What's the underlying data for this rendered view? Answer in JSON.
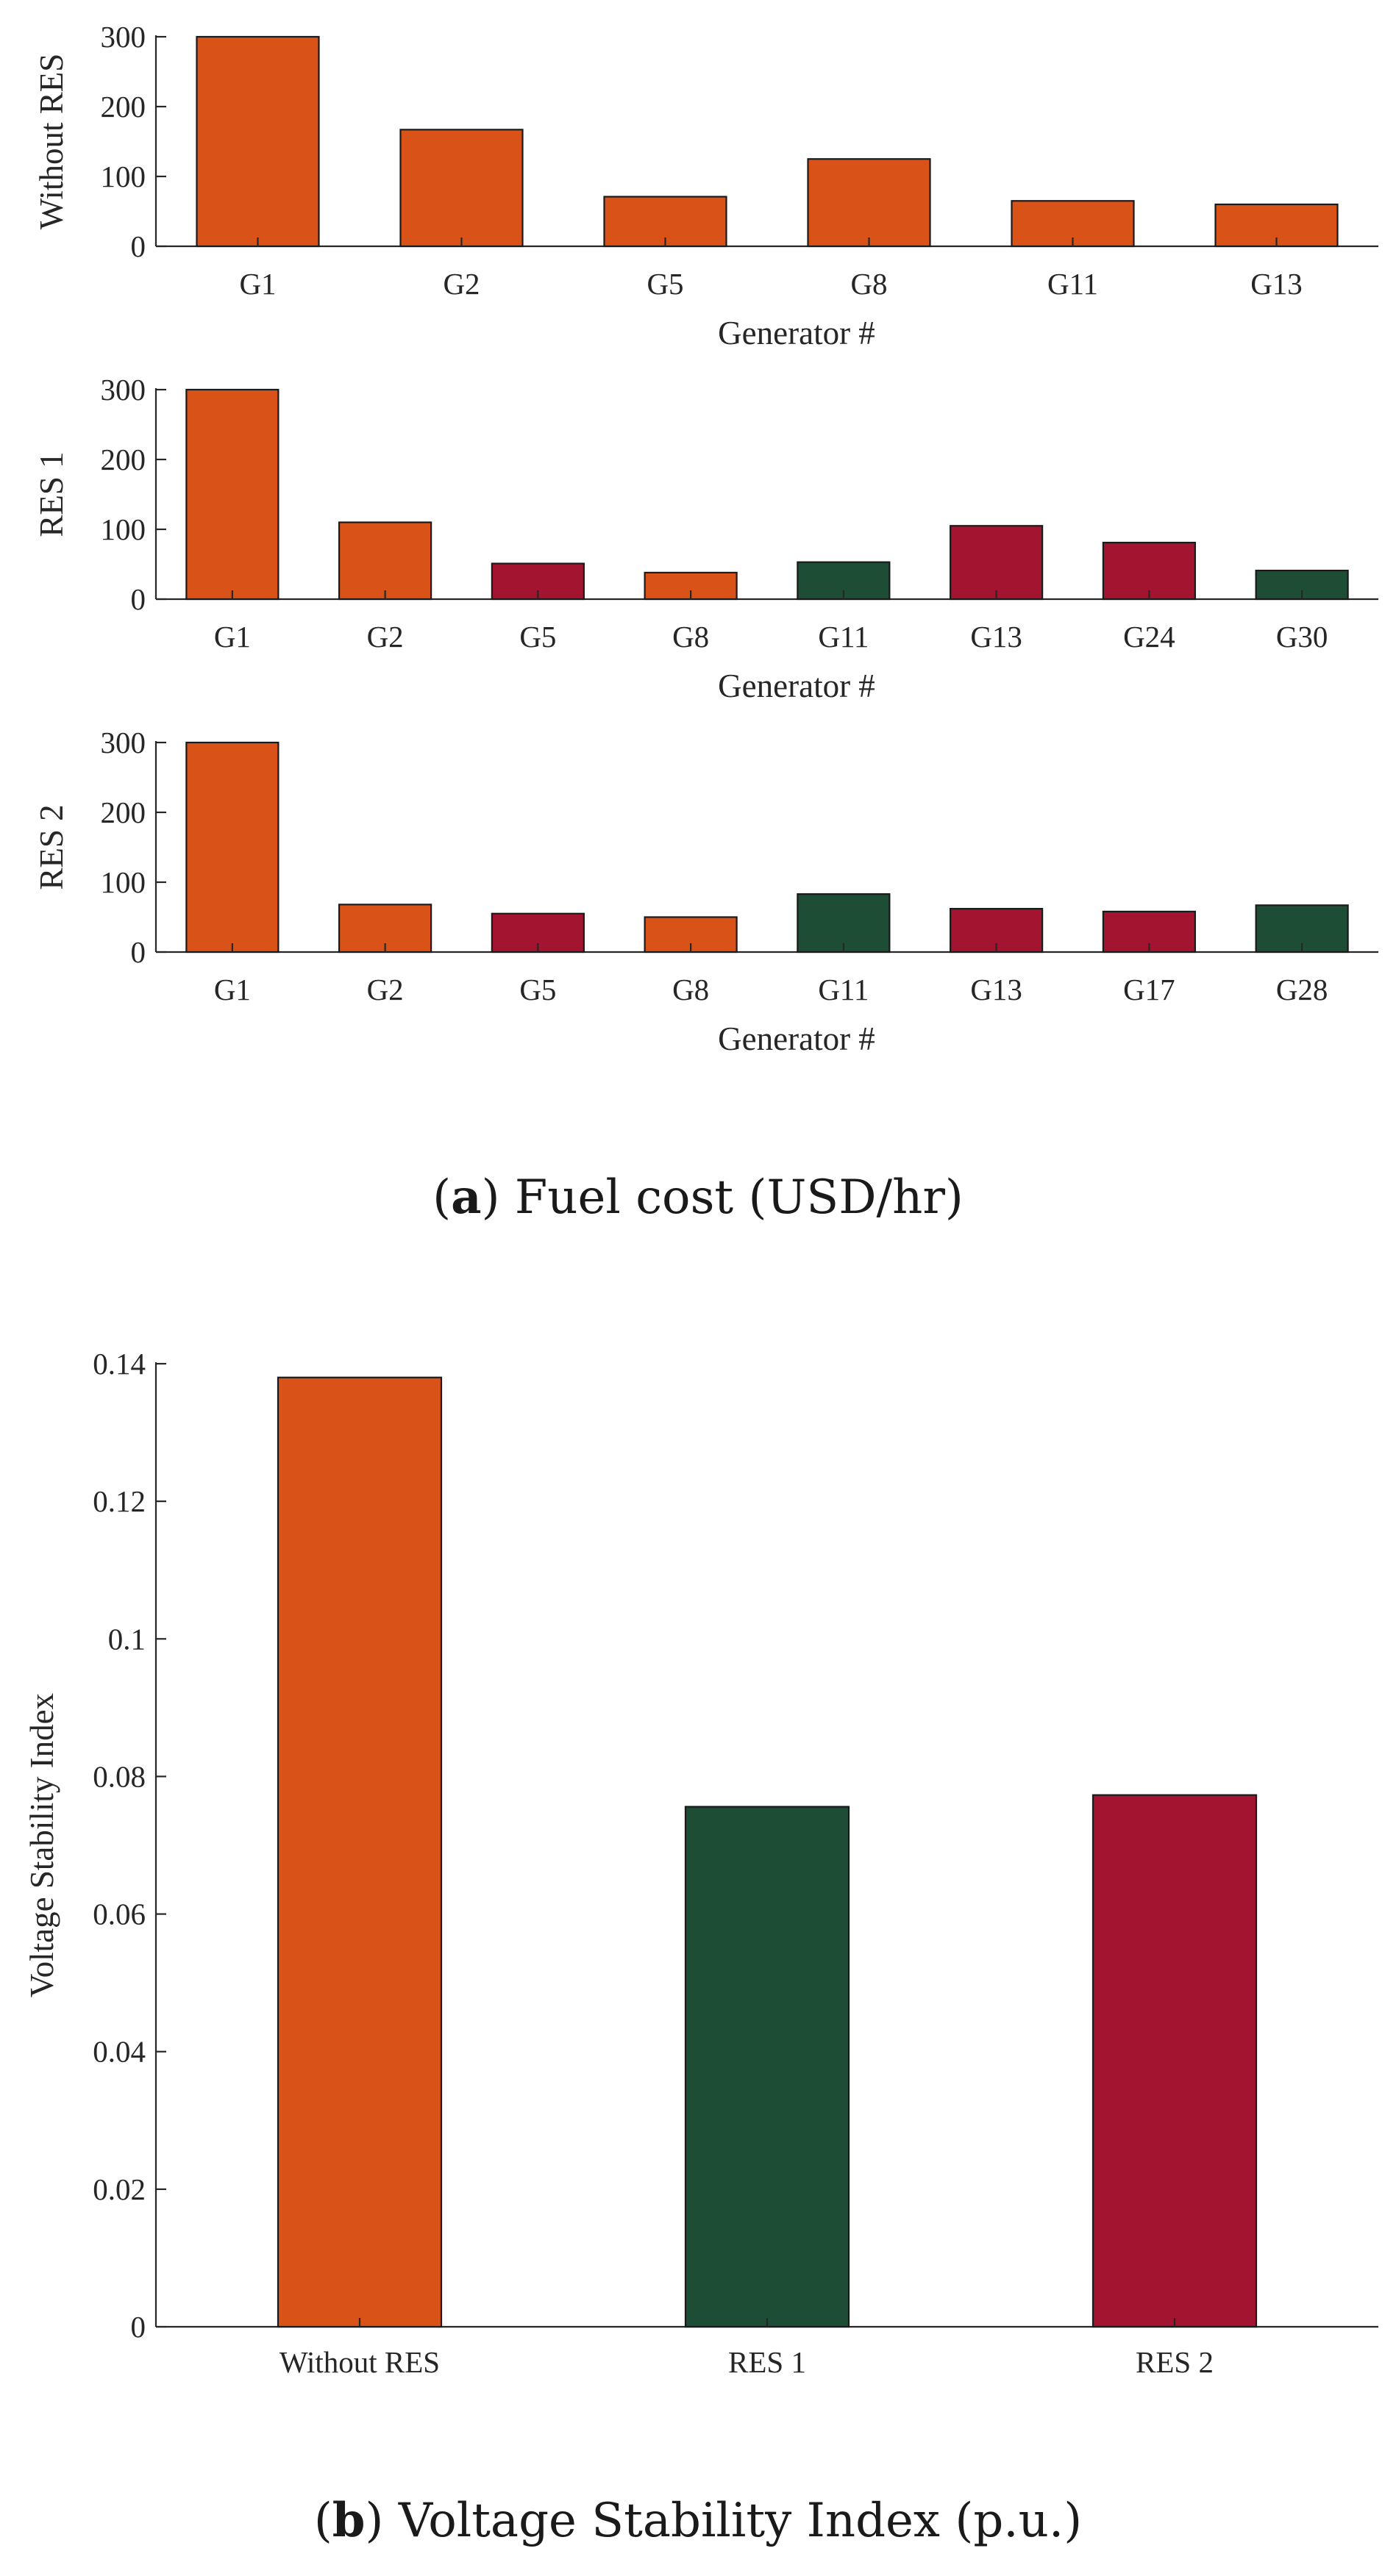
{
  "colors": {
    "conventional": "#D95319",
    "res_a": "#A2142F",
    "res_b": "#1E4D35"
  },
  "chart_data": [
    {
      "type": "bar",
      "panel": "a-top",
      "categories": [
        "G1",
        "G2",
        "G5",
        "G8",
        "G11",
        "G13"
      ],
      "values": [
        300,
        167,
        71,
        125,
        65,
        60
      ],
      "bar_colors": [
        "#D95319",
        "#D95319",
        "#D95319",
        "#D95319",
        "#D95319",
        "#D95319"
      ],
      "ylabel": "Without RES",
      "xlabel": "Generator #",
      "ylim": [
        0,
        300
      ],
      "yticks": [
        0,
        100,
        200,
        300
      ]
    },
    {
      "type": "bar",
      "panel": "a-middle",
      "categories": [
        "G1",
        "G2",
        "G5",
        "G8",
        "G11",
        "G13",
        "G24",
        "G30"
      ],
      "values": [
        300,
        110,
        51,
        38,
        53,
        105,
        81,
        41
      ],
      "bar_colors": [
        "#D95319",
        "#D95319",
        "#A2142F",
        "#D95319",
        "#1E4D35",
        "#A2142F",
        "#A2142F",
        "#1E4D35"
      ],
      "ylabel": "RES 1",
      "xlabel": "Generator #",
      "ylim": [
        0,
        300
      ],
      "yticks": [
        0,
        100,
        200,
        300
      ]
    },
    {
      "type": "bar",
      "panel": "a-bottom",
      "categories": [
        "G1",
        "G2",
        "G5",
        "G8",
        "G11",
        "G13",
        "G17",
        "G28"
      ],
      "values": [
        300,
        68,
        55,
        50,
        83,
        62,
        58,
        67
      ],
      "bar_colors": [
        "#D95319",
        "#D95319",
        "#A2142F",
        "#D95319",
        "#1E4D35",
        "#A2142F",
        "#A2142F",
        "#1E4D35"
      ],
      "ylabel": "RES 2",
      "xlabel": "Generator #",
      "ylim": [
        0,
        300
      ],
      "yticks": [
        0,
        100,
        200,
        300
      ]
    },
    {
      "type": "bar",
      "panel": "b",
      "categories": [
        "Without RES",
        "RES 1",
        "RES 2"
      ],
      "values": [
        0.138,
        0.0756,
        0.0773
      ],
      "bar_colors": [
        "#D95319",
        "#1E4D35",
        "#A2142F"
      ],
      "ylabel": "Voltage Stability Index",
      "xlabel": "",
      "ylim": [
        0,
        0.14
      ],
      "yticks": [
        "0",
        "0.02",
        "0.04",
        "0.06",
        "0.08",
        "0.1",
        "0.12",
        "0.14"
      ]
    }
  ],
  "captions": {
    "a": {
      "letter": "a",
      "text": " Fuel cost (USD/hr)"
    },
    "b": {
      "letter": "b",
      "text": " Voltage Stability Index (p.u.)"
    }
  }
}
